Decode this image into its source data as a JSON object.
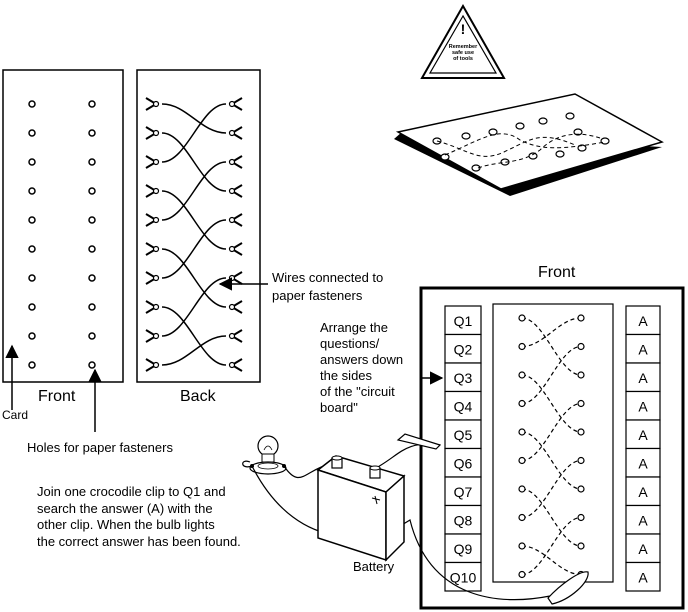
{
  "warning": {
    "line1": "Remember",
    "line2": "safe use",
    "line3": "of tools"
  },
  "cards": {
    "front_label": "Front",
    "back_label": "Back"
  },
  "labels": {
    "card": "Card",
    "holes": "Holes for paper fasteners",
    "wires_line1": "Wires connected to",
    "wires_line2": "paper fasteners",
    "arrange_lines": [
      "Arrange the",
      "questions/",
      "answers down",
      "the sides",
      "of the \"circuit",
      "board\""
    ],
    "battery": "Battery",
    "instructions_lines": [
      "Join one crocodile clip to Q1 and",
      "search the answer (A) with the",
      "other clip.  When the bulb lights",
      "the correct answer has been found."
    ]
  },
  "board": {
    "title": "Front",
    "questions": [
      "Q1",
      "Q2",
      "Q3",
      "Q4",
      "Q5",
      "Q6",
      "Q7",
      "Q8",
      "Q9",
      "Q10"
    ],
    "answers": [
      "A",
      "A",
      "A",
      "A",
      "A",
      "A",
      "A",
      "A",
      "A",
      "A"
    ]
  },
  "battery_terminals": {
    "positive": "+",
    "negative": "-"
  }
}
